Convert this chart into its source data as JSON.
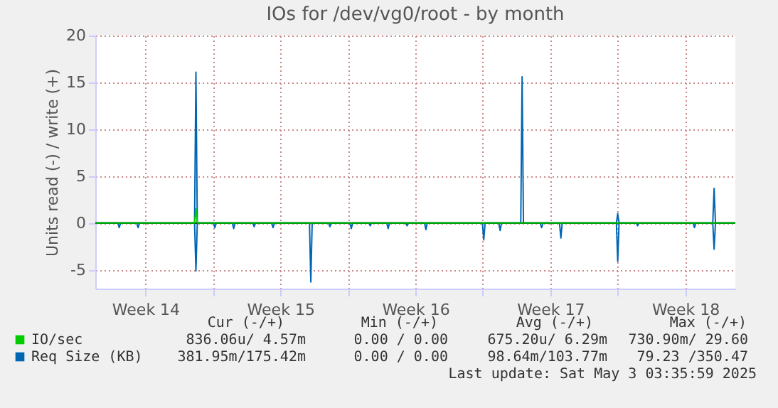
{
  "chart_data": {
    "type": "line",
    "title": "IOs for /dev/vg0/root - by month",
    "ylabel": "Units read (-) / write (+)",
    "xlim": [
      "2025-03-31T21:36",
      "2025-05-04T02:24"
    ],
    "xticks": [
      {
        "value": "2025-04-03T12:00",
        "label": "Week 14"
      },
      {
        "value": "2025-04-07",
        "label": null
      },
      {
        "value": "2025-04-10T12:00",
        "label": "Week 15"
      },
      {
        "value": "2025-04-14",
        "label": null
      },
      {
        "value": "2025-04-17T12:00",
        "label": "Week 16"
      },
      {
        "value": "2025-04-21",
        "label": null
      },
      {
        "value": "2025-04-24T12:00",
        "label": "Week 17"
      },
      {
        "value": "2025-04-28",
        "label": null
      },
      {
        "value": "2025-05-01T12:00",
        "label": "Week 18"
      }
    ],
    "ylim": [
      -7,
      20
    ],
    "yticks": [
      -5,
      0,
      5,
      10,
      15,
      20
    ],
    "grid": true,
    "legend": "bottom",
    "ref_lines": [
      {
        "axis": "y",
        "value": 0,
        "color": "#000000"
      }
    ],
    "series": [
      {
        "name": "IO/sec",
        "color": "#00cc00",
        "x": [
          "2025-03-31T21:36",
          "2025-04-06T01:12",
          "2025-04-06T02:53",
          "2025-04-06T04:34",
          "2025-05-04T02:24"
        ],
        "values": [
          0,
          0,
          1.5,
          0,
          0
        ]
      },
      {
        "name": "Req Size (KB)",
        "color": "#0066b3",
        "x": [
          "2025-03-31T21:36",
          "2025-04-06T01:12",
          "2025-04-06T02:53",
          "2025-04-06T04:34",
          "2025-04-22T23:17",
          "2025-04-23T00:58",
          "2025-04-23T02:38",
          "2025-04-27T22:19",
          "2025-04-28T00:00",
          "2025-04-28T01:41",
          "2025-05-02T22:19",
          "2025-05-03T00:00",
          "2025-05-03T01:41",
          "2025-05-04T02:24"
        ],
        "values": [
          0,
          0,
          16.1,
          0,
          0,
          15.6,
          0,
          0,
          1.0,
          0,
          0,
          3.7,
          0,
          0
        ]
      },
      {
        "color": "#0066b3",
        "x": [
          "2025-03-31T21:36",
          "2025-04-02T01:41",
          "2025-04-02T03:22",
          "2025-04-02T05:02",
          "2025-04-03T01:12",
          "2025-04-03T02:53",
          "2025-04-03T04:34",
          "2025-04-06T01:12",
          "2025-04-06T02:53",
          "2025-04-06T04:34",
          "2025-04-07T00:43",
          "2025-04-07T02:24",
          "2025-04-07T04:05",
          "2025-04-08T00:14",
          "2025-04-08T01:55",
          "2025-04-08T03:36",
          "2025-04-09T01:41",
          "2025-04-09T03:22",
          "2025-04-09T05:02",
          "2025-04-10T01:12",
          "2025-04-10T02:53",
          "2025-04-10T04:34",
          "2025-04-12T00:14",
          "2025-04-12T01:55",
          "2025-04-12T03:36",
          "2025-04-13T00:00",
          "2025-04-13T01:41",
          "2025-04-13T03:22",
          "2025-04-14T02:38",
          "2025-04-14T04:19",
          "2025-04-14T06:00",
          "2025-04-15T02:10",
          "2025-04-15T03:50",
          "2025-04-15T05:31",
          "2025-04-16T00:29",
          "2025-04-16T02:10",
          "2025-04-16T03:50",
          "2025-04-17T00:00",
          "2025-04-17T01:41",
          "2025-04-17T03:22",
          "2025-04-17T23:31",
          "2025-04-18T01:12",
          "2025-04-18T02:53",
          "2025-04-20T23:31",
          "2025-04-21T01:12",
          "2025-04-21T02:53",
          "2025-04-21T19:55",
          "2025-04-21T21:36",
          "2025-04-21T23:17",
          "2025-04-23T23:31",
          "2025-04-24T01:12",
          "2025-04-24T02:53",
          "2025-04-24T23:31",
          "2025-04-25T01:12",
          "2025-04-25T02:53",
          "2025-04-27T22:19",
          "2025-04-28T00:00",
          "2025-04-28T01:41",
          "2025-04-28T23:02",
          "2025-04-29T00:43",
          "2025-04-29T02:24",
          "2025-05-01T21:50",
          "2025-05-01T23:31",
          "2025-05-02T01:12",
          "2025-05-02T22:19",
          "2025-05-03T00:00",
          "2025-05-03T01:41",
          "2025-05-04T02:24"
        ],
        "values": [
          0,
          0,
          -0.5,
          0,
          0,
          -0.5,
          0,
          0,
          -5.1,
          0,
          0,
          -0.5,
          0,
          0,
          -0.6,
          0,
          0,
          -0.4,
          0,
          0,
          -0.5,
          0,
          0,
          -6.3,
          0,
          0,
          -0.4,
          0,
          0,
          -0.6,
          0,
          0,
          -0.3,
          0,
          0,
          -0.6,
          0,
          0,
          -0.3,
          0,
          0,
          -0.7,
          0,
          0,
          -1.8,
          0,
          0,
          -0.8,
          0,
          0,
          -0.5,
          0,
          0,
          -1.6,
          0,
          0,
          -4.1,
          0,
          0,
          -0.3,
          0,
          0,
          -0.5,
          0,
          0,
          -2.8,
          0,
          0
        ]
      }
    ],
    "annotations": [
      "Cur (-/+)",
      "Min (-/+)",
      "Avg (-/+)",
      "Max (-/+)",
      "836.06u/  4.57m",
      "0.00 /  0.00",
      "675.20u/  6.29m",
      "730.90m/ 29.60",
      "381.95m/175.42m",
      "0.00 /  0.00",
      "98.64m/103.77m",
      "79.23 /350.47",
      "Last update: Sat May  3 03:35:59 2025"
    ]
  }
}
